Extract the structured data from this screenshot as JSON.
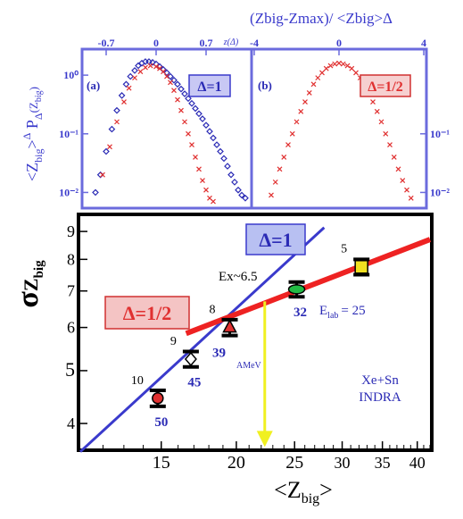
{
  "chart_data": [
    {
      "panel": "(a)",
      "type": "scatter",
      "delta_box": "Δ=1",
      "xlabel": "z(Δ)",
      "x_ticks": [
        "-0.7",
        "0",
        "0.7"
      ],
      "y_ticks": [
        "10⁰",
        "10⁻¹",
        "10⁻²"
      ],
      "y_scale": "log",
      "ylim": [
        0.006,
        2.5
      ],
      "series": [
        {
          "color": "#2b2bb5",
          "marker": "diamond",
          "x": [
            -0.85,
            -0.78,
            -0.7,
            -0.62,
            -0.55,
            -0.48,
            -0.42,
            -0.36,
            -0.3,
            -0.25,
            -0.2,
            -0.15,
            -0.1,
            -0.05,
            0,
            0.05,
            0.1,
            0.15,
            0.2,
            0.25,
            0.3,
            0.35,
            0.4,
            0.45,
            0.5,
            0.55,
            0.6,
            0.65,
            0.7,
            0.75,
            0.8,
            0.85,
            0.9,
            0.95,
            1.0,
            1.05,
            1.1,
            1.15,
            1.2,
            1.25
          ],
          "y": [
            0.01,
            0.02,
            0.05,
            0.12,
            0.25,
            0.45,
            0.7,
            0.95,
            1.2,
            1.45,
            1.6,
            1.7,
            1.7,
            1.65,
            1.55,
            1.4,
            1.25,
            1.1,
            0.95,
            0.82,
            0.7,
            0.58,
            0.48,
            0.4,
            0.33,
            0.27,
            0.22,
            0.18,
            0.14,
            0.11,
            0.085,
            0.065,
            0.05,
            0.038,
            0.028,
            0.02,
            0.015,
            0.011,
            0.009,
            0.008
          ]
        },
        {
          "color": "#e03030",
          "marker": "x",
          "x": [
            -0.75,
            -0.65,
            -0.55,
            -0.45,
            -0.38,
            -0.3,
            -0.22,
            -0.15,
            -0.08,
            0,
            0.05,
            0.1,
            0.15,
            0.2,
            0.25,
            0.3,
            0.35,
            0.4,
            0.45,
            0.5,
            0.55,
            0.6,
            0.65,
            0.7,
            0.75,
            0.8
          ],
          "y": [
            0.02,
            0.06,
            0.16,
            0.35,
            0.6,
            0.9,
            1.15,
            1.35,
            1.45,
            1.4,
            1.3,
            1.15,
            0.95,
            0.75,
            0.55,
            0.38,
            0.25,
            0.16,
            0.1,
            0.065,
            0.04,
            0.025,
            0.016,
            0.011,
            0.008,
            0.007
          ]
        }
      ]
    },
    {
      "panel": "(b)",
      "type": "scatter",
      "delta_box": "Δ=1/2",
      "title": "(Zbig-Zmax)/ <Zbig>Δ",
      "x_ticks": [
        "-4",
        "0",
        "4"
      ],
      "y_ticks": [
        "10⁻¹",
        "10⁻²"
      ],
      "y_scale": "log",
      "ylim": [
        0.006,
        2.5
      ],
      "series": [
        {
          "color": "#e03030",
          "marker": "x",
          "x": [
            -3.2,
            -3.0,
            -2.8,
            -2.6,
            -2.4,
            -2.2,
            -2.0,
            -1.8,
            -1.6,
            -1.4,
            -1.2,
            -1.0,
            -0.8,
            -0.6,
            -0.4,
            -0.2,
            0,
            0.2,
            0.4,
            0.6,
            0.8,
            1.0,
            1.2,
            1.4,
            1.6,
            1.8,
            2.0,
            2.2,
            2.4,
            2.6,
            2.8,
            3.0,
            3.2,
            3.4
          ],
          "y": [
            0.009,
            0.015,
            0.025,
            0.04,
            0.065,
            0.1,
            0.16,
            0.24,
            0.35,
            0.5,
            0.7,
            0.9,
            1.1,
            1.3,
            1.45,
            1.55,
            1.6,
            1.55,
            1.45,
            1.3,
            1.1,
            0.9,
            0.7,
            0.5,
            0.35,
            0.24,
            0.16,
            0.1,
            0.065,
            0.04,
            0.025,
            0.016,
            0.011,
            0.008
          ]
        }
      ]
    },
    {
      "type": "line",
      "xlabel": "<Zbig>",
      "ylabel": "σZbig",
      "x_scale": "log",
      "y_scale": "log",
      "xlim": [
        11,
        42
      ],
      "ylim": [
        3.6,
        9.6
      ],
      "x_ticks": [
        15,
        20,
        25,
        30,
        35,
        40
      ],
      "y_ticks": [
        4,
        5,
        6,
        7,
        8,
        9
      ],
      "points": [
        {
          "x": 14.8,
          "y": 4.45,
          "err": 0.15,
          "color": "#e03030",
          "shape": "circle",
          "inner": "10",
          "outer": "50"
        },
        {
          "x": 16.8,
          "y": 5.25,
          "err": 0.17,
          "color": "#ffffff",
          "shape": "diamond",
          "inner": "9",
          "outer": "45"
        },
        {
          "x": 19.5,
          "y": 6.0,
          "err": 0.2,
          "color": "#e03030",
          "shape": "triangle",
          "inner": "8",
          "outer": "39"
        },
        {
          "x": 25.2,
          "y": 7.05,
          "err": 0.22,
          "color": "#22bb44",
          "shape": "ellipse",
          "inner": "",
          "outer": "32"
        },
        {
          "x": 32.3,
          "y": 7.75,
          "err": 0.25,
          "color": "#f0e020",
          "shape": "square",
          "inner": "5",
          "outer": ""
        }
      ],
      "lines": [
        {
          "name": "Δ=1",
          "color": "#3a3acc",
          "x": [
            11,
            28
          ],
          "y": [
            3.55,
            9.15
          ]
        },
        {
          "name": "Δ=1/2",
          "color": "#ee2222",
          "x": [
            16.5,
            42
          ],
          "y": [
            5.85,
            8.7
          ]
        }
      ],
      "arrow": {
        "x": 22.3,
        "y_from": 6.7,
        "y_to": 3.65,
        "color": "#f0f020"
      },
      "annotations": {
        "ex": "Ex~6.5",
        "unit": "AMeV",
        "elab_main": "E",
        "elab_sub": "lab",
        "elab_tail": "= 25",
        "system_line1": "Xe+Sn",
        "system_line2": "INDRA"
      }
    }
  ]
}
